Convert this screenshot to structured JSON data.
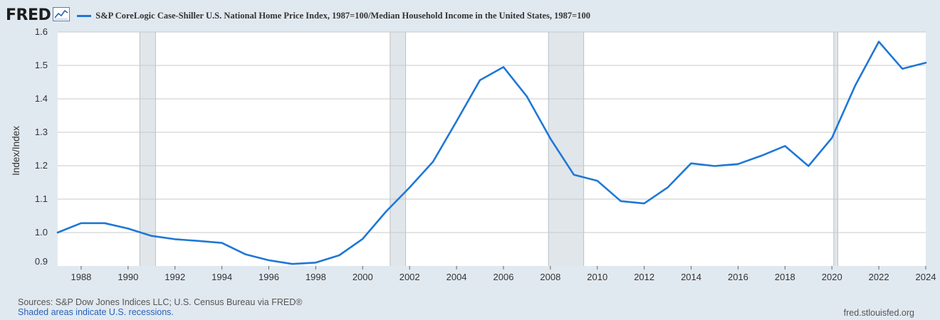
{
  "header": {
    "logo_text": "FRED",
    "legend_label": "S&P CoreLogic Case-Shiller U.S. National Home Price Index, 1987=100/Median Household Income in the United States, 1987=100"
  },
  "colors": {
    "series": "#1f77d6",
    "recession": "#e1e6ea",
    "grid": "#c9c9c9",
    "background": "#e1e9f0"
  },
  "footer": {
    "sources": "Sources: S&P Dow Jones Indices LLC; U.S. Census Bureau via FRED®",
    "shaded_note": "Shaded areas indicate U.S. recessions.",
    "credit": "fred.stlouisfed.org"
  },
  "chart_data": {
    "type": "line",
    "title": "S&P CoreLogic Case-Shiller U.S. National Home Price Index, 1987=100/Median Household Income in the United States, 1987=100",
    "xlabel": "",
    "ylabel": "Index/Index",
    "xlim": [
      1987,
      2024
    ],
    "ylim": [
      0.9,
      1.6
    ],
    "y_ticks": [
      "0.9",
      "1.0",
      "1.1",
      "1.2",
      "1.3",
      "1.4",
      "1.5",
      "1.6"
    ],
    "x_ticks": [
      "1988",
      "1990",
      "1992",
      "1994",
      "1996",
      "1998",
      "2000",
      "2002",
      "2004",
      "2006",
      "2008",
      "2010",
      "2012",
      "2014",
      "2016",
      "2018",
      "2020",
      "2022",
      "2024"
    ],
    "recessions": [
      [
        1990.5,
        1991.17
      ],
      [
        2001.17,
        2001.83
      ],
      [
        2007.92,
        2009.42
      ],
      [
        2020.08,
        2020.25
      ]
    ],
    "series": [
      {
        "name": "S&P CoreLogic Case-Shiller U.S. National Home Price Index, 1987=100/Median Household Income in the United States, 1987=100",
        "x": [
          1987,
          1988,
          1989,
          1990,
          1991,
          1992,
          1993,
          1994,
          1995,
          1996,
          1997,
          1998,
          1999,
          2000,
          2001,
          2002,
          2003,
          2004,
          2005,
          2006,
          2007,
          2008,
          2009,
          2010,
          2011,
          2012,
          2013,
          2014,
          2015,
          2016,
          2017,
          2018,
          2019,
          2020,
          2021,
          2022,
          2023,
          2024
        ],
        "values": [
          1.0,
          1.028,
          1.028,
          1.012,
          0.99,
          0.98,
          0.975,
          0.969,
          0.935,
          0.917,
          0.906,
          0.91,
          0.932,
          0.981,
          1.063,
          1.135,
          1.212,
          1.333,
          1.456,
          1.495,
          1.407,
          1.281,
          1.173,
          1.155,
          1.094,
          1.087,
          1.135,
          1.207,
          1.199,
          1.205,
          1.23,
          1.259,
          1.199,
          1.283,
          1.441,
          1.571,
          1.49,
          1.508
        ]
      }
    ]
  }
}
